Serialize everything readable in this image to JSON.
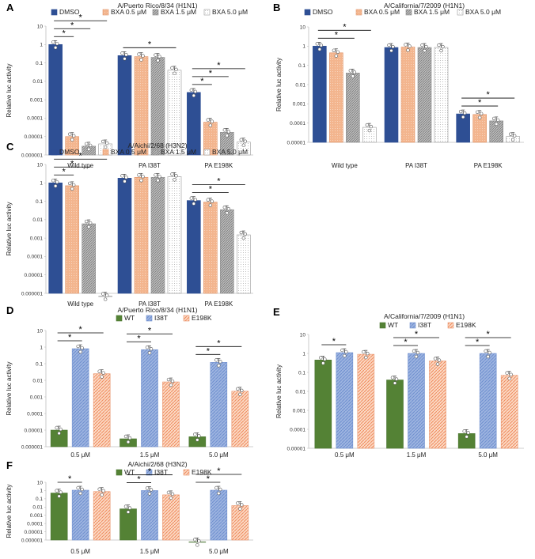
{
  "chart_data": [
    {
      "panel": "A",
      "type": "bar",
      "title": "A/Puerto Rico/8/34 (H1N1)",
      "ylabel": "Relative luc activity",
      "yscale": "log",
      "ylim": [
        1e-06,
        10
      ],
      "yticks": [
        "10",
        "1",
        "0.1",
        "0.01",
        "0.001",
        "0.0001",
        "0.00001",
        "0.000001"
      ],
      "categories": [
        "Wild type",
        "PA I38T",
        "PA E198K"
      ],
      "series": [
        {
          "name": "DMSO",
          "style": "dmso",
          "values": [
            1,
            0.25,
            0.0025
          ]
        },
        {
          "name": "BXA 0.5 μM",
          "style": "b05",
          "values": [
            1e-05,
            0.22,
            6e-05
          ]
        },
        {
          "name": "BXA 1.5 μM",
          "style": "b15",
          "values": [
            3e-06,
            0.2,
            1.7e-05
          ]
        },
        {
          "name": "BXA 5.0 μM",
          "style": "b50",
          "values": [
            4e-06,
            0.04,
            5e-06
          ]
        }
      ],
      "significance": [
        {
          "group": 0,
          "from": 0,
          "to": 1,
          "label": "*"
        },
        {
          "group": 0,
          "from": 0,
          "to": 2,
          "label": "*"
        },
        {
          "group": 0,
          "from": 0,
          "to": 3,
          "label": "*"
        },
        {
          "group": 1,
          "from": 0,
          "to": 3,
          "label": "*"
        },
        {
          "group": 2,
          "from": 0,
          "to": 1,
          "label": "*"
        },
        {
          "group": 2,
          "from": 0,
          "to": 2,
          "label": "*"
        },
        {
          "group": 2,
          "from": 0,
          "to": 3,
          "label": "*"
        }
      ]
    },
    {
      "panel": "B",
      "type": "bar",
      "title": "A/California/7/2009 (H1N1)",
      "ylabel": "Relative luc activity",
      "yscale": "log",
      "ylim": [
        1e-05,
        10
      ],
      "yticks": [
        "10",
        "1",
        "0.1",
        "0.01",
        "0.001",
        "0.0001",
        "0.00001"
      ],
      "categories": [
        "Wild type",
        "PA I38T",
        "PA E198K"
      ],
      "series": [
        {
          "name": "DMSO",
          "style": "dmso",
          "values": [
            1,
            0.85,
            0.0003
          ]
        },
        {
          "name": "BXA 0.5 μM",
          "style": "b05",
          "values": [
            0.45,
            0.9,
            0.00028
          ]
        },
        {
          "name": "BXA 1.5 μM",
          "style": "b15",
          "values": [
            0.04,
            0.85,
            0.00013
          ]
        },
        {
          "name": "BXA 5.0 μM",
          "style": "b50",
          "values": [
            6e-05,
            0.85,
            2e-05
          ]
        }
      ],
      "significance": [
        {
          "group": 0,
          "from": 0,
          "to": 2,
          "label": "*"
        },
        {
          "group": 0,
          "from": 0,
          "to": 3,
          "label": "*"
        },
        {
          "group": 2,
          "from": 0,
          "to": 2,
          "label": "*"
        },
        {
          "group": 2,
          "from": 0,
          "to": 3,
          "label": "*"
        }
      ]
    },
    {
      "panel": "C",
      "type": "bar",
      "title": "A/Aichi/2/68 (H3N2)",
      "ylabel": "Relative luc activity",
      "yscale": "log",
      "ylim": [
        1e-06,
        10
      ],
      "yticks": [
        "10",
        "1",
        "0.1",
        "0.01",
        "0.001",
        "0.0001",
        "0.00001",
        "0.000001"
      ],
      "categories": [
        "Wild type",
        "PA I38T",
        "PA E198K"
      ],
      "series": [
        {
          "name": "DMSO",
          "style": "dmso",
          "values": [
            1,
            1.8,
            0.11
          ]
        },
        {
          "name": "BXA 0.5 μM",
          "style": "b05",
          "values": [
            0.7,
            2,
            0.09
          ]
        },
        {
          "name": "BXA 1.5 μM",
          "style": "b15",
          "values": [
            0.006,
            2,
            0.035
          ]
        },
        {
          "name": "BXA 5.0 μM",
          "style": "b50",
          "values": [
            7e-07,
            2.2,
            0.0015
          ]
        }
      ],
      "significance": [
        {
          "group": 0,
          "from": 0,
          "to": 1,
          "label": "*"
        },
        {
          "group": 0,
          "from": 0,
          "to": 2,
          "label": "*"
        },
        {
          "group": 0,
          "from": 0,
          "to": 3,
          "label": "*"
        },
        {
          "group": 2,
          "from": 0,
          "to": 2,
          "label": "*"
        },
        {
          "group": 2,
          "from": 0,
          "to": 3,
          "label": "*"
        }
      ]
    },
    {
      "panel": "D",
      "type": "bar",
      "title": "A/Puerto Rico/8/34 (H1N1)",
      "ylabel": "Relative luc activity",
      "yscale": "log",
      "ylim": [
        1e-06,
        10
      ],
      "yticks": [
        "10",
        "1",
        "0.1",
        "0.01",
        "0.001",
        "0.0001",
        "0.00001",
        "0.000001"
      ],
      "categories": [
        "0.5 μM",
        "1.5 μM",
        "5.0 μM"
      ],
      "series": [
        {
          "name": "WT",
          "style": "wt",
          "values": [
            1e-05,
            3e-06,
            4e-06
          ]
        },
        {
          "name": "I38T",
          "style": "i38",
          "values": [
            0.8,
            0.7,
            0.12
          ]
        },
        {
          "name": "E198K",
          "style": "e198",
          "values": [
            0.025,
            0.008,
            0.0022
          ]
        }
      ],
      "significance": [
        {
          "group": 0,
          "from": 0,
          "to": 1,
          "label": "*"
        },
        {
          "group": 0,
          "from": 0,
          "to": 2,
          "label": "*"
        },
        {
          "group": 1,
          "from": 0,
          "to": 1,
          "label": "*"
        },
        {
          "group": 1,
          "from": 0,
          "to": 2,
          "label": "*"
        },
        {
          "group": 2,
          "from": 0,
          "to": 1,
          "label": "*"
        },
        {
          "group": 2,
          "from": 0,
          "to": 2,
          "label": "*"
        }
      ]
    },
    {
      "panel": "E",
      "type": "bar",
      "title": "A/California/7/2009 (H1N1)",
      "ylabel": "Relative luc activity",
      "yscale": "log",
      "ylim": [
        1e-05,
        10
      ],
      "yticks": [
        "10",
        "1",
        "0.1",
        "0.01",
        "0.001",
        "0.0001",
        "0.00001"
      ],
      "categories": [
        "0.5 μM",
        "1.5 μM",
        "5.0 μM"
      ],
      "series": [
        {
          "name": "WT",
          "style": "wt",
          "values": [
            0.45,
            0.04,
            6e-05
          ]
        },
        {
          "name": "I38T",
          "style": "i38",
          "values": [
            1.1,
            1,
            1
          ]
        },
        {
          "name": "E198K",
          "style": "e198",
          "values": [
            0.9,
            0.4,
            0.07
          ]
        }
      ],
      "significance": [
        {
          "group": 0,
          "from": 0,
          "to": 1,
          "label": "*"
        },
        {
          "group": 1,
          "from": 0,
          "to": 1,
          "label": "*"
        },
        {
          "group": 1,
          "from": 0,
          "to": 2,
          "label": "*"
        },
        {
          "group": 2,
          "from": 0,
          "to": 1,
          "label": "*"
        },
        {
          "group": 2,
          "from": 0,
          "to": 2,
          "label": "*"
        }
      ]
    },
    {
      "panel": "F",
      "type": "bar",
      "title": "A/Aichi/2/68 (H3N2)",
      "ylabel": "Relative luc activity",
      "yscale": "log",
      "ylim": [
        1e-06,
        10
      ],
      "yticks": [
        "10",
        "1",
        "0.1",
        "0.01",
        "0.001",
        "0.0001",
        "0.00001",
        "0.000001"
      ],
      "categories": [
        "0.5 μM",
        "1.5 μM",
        "5.0 μM"
      ],
      "series": [
        {
          "name": "WT",
          "style": "wt",
          "values": [
            0.5,
            0.006,
            6e-07
          ]
        },
        {
          "name": "I38T",
          "style": "i38",
          "values": [
            1.1,
            1,
            1.1
          ]
        },
        {
          "name": "E198K",
          "style": "e198",
          "values": [
            0.75,
            0.3,
            0.015
          ]
        }
      ],
      "significance": [
        {
          "group": 0,
          "from": 0,
          "to": 1,
          "label": "*"
        },
        {
          "group": 1,
          "from": 0,
          "to": 1,
          "label": "*"
        },
        {
          "group": 1,
          "from": 0,
          "to": 2,
          "label": "*"
        },
        {
          "group": 2,
          "from": 0,
          "to": 1,
          "label": "*"
        },
        {
          "group": 2,
          "from": 0,
          "to": 2,
          "label": "*"
        }
      ]
    }
  ],
  "colors": {
    "dmso": "#2e4f94",
    "bxa05": "#f3b58e",
    "bxa15": "#a3a3a3",
    "bxa50": "#ffffff",
    "wt": "#548235",
    "i38t": "#8faadc",
    "e198k": "#f4b183"
  }
}
